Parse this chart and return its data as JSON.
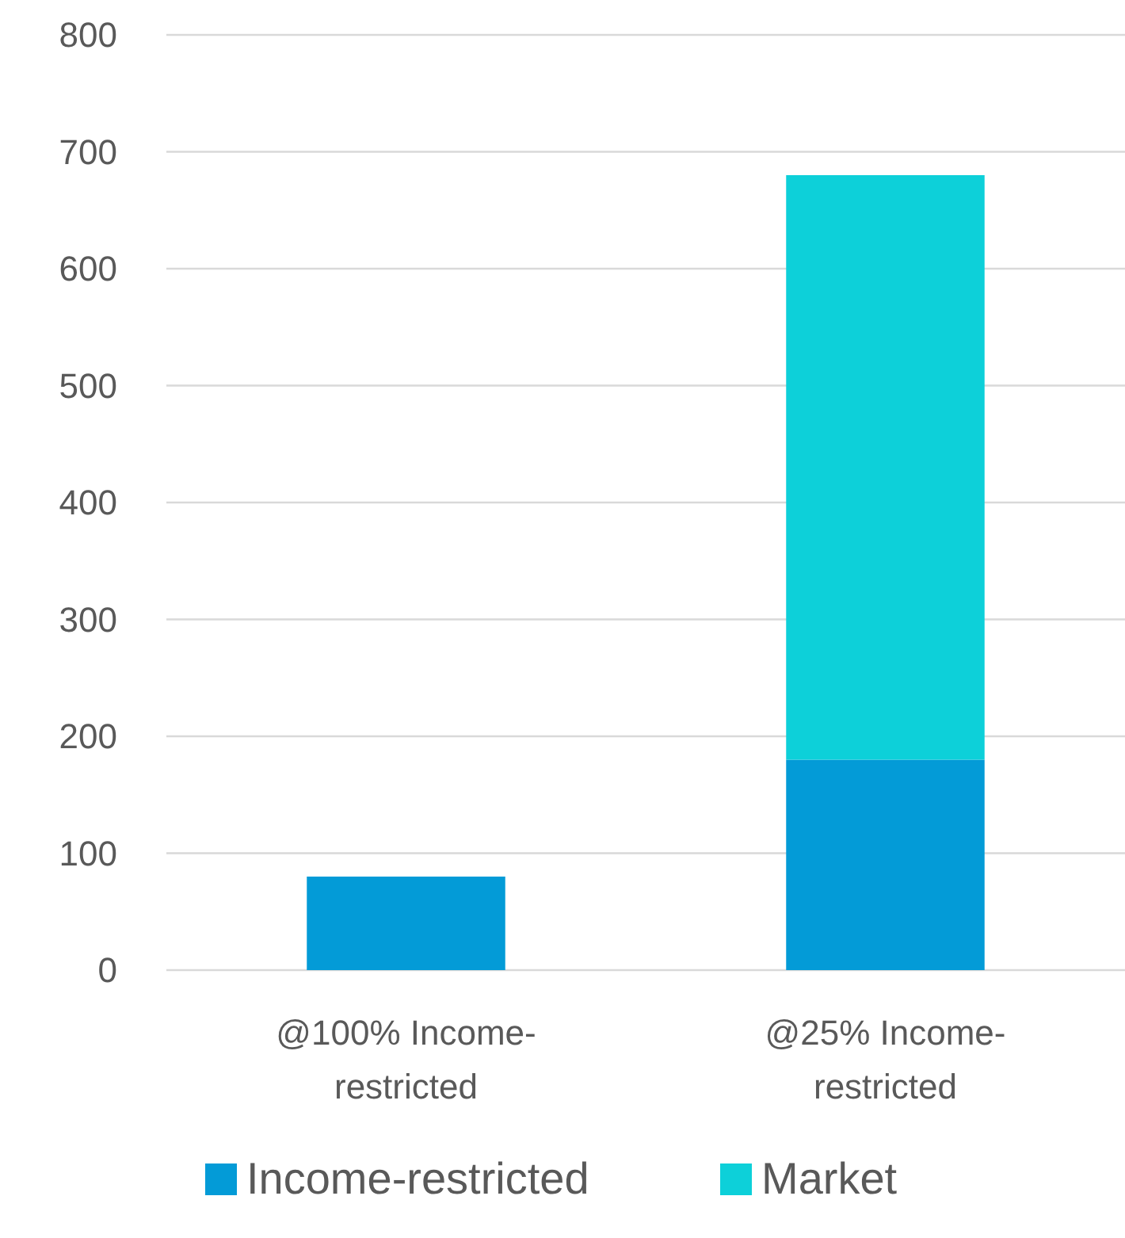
{
  "chart_data": {
    "type": "bar",
    "stacked": true,
    "categories": [
      "@100% Income-restricted",
      "@25% Income-restricted"
    ],
    "series": [
      {
        "name": "Income-restricted",
        "color": "#039bd7",
        "values": [
          80,
          180
        ]
      },
      {
        "name": "Market",
        "color": "#0dd0d9",
        "values": [
          null,
          500
        ]
      }
    ],
    "ylim": [
      0,
      800
    ],
    "yticks": [
      0,
      100,
      200,
      300,
      400,
      500,
      600,
      700,
      800
    ],
    "grid": "y",
    "legend": "bottom"
  }
}
